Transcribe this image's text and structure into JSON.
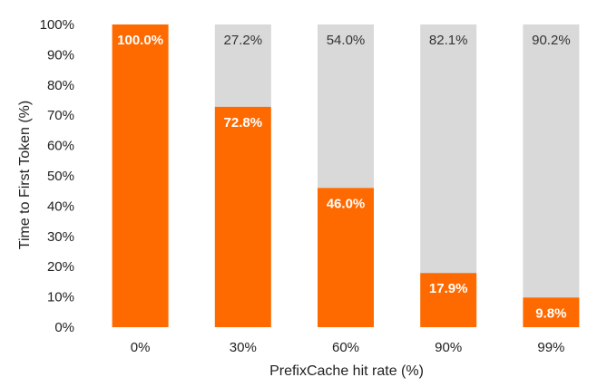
{
  "chart_data": {
    "type": "bar",
    "stacked": true,
    "categories": [
      "0%",
      "30%",
      "60%",
      "90%",
      "99%"
    ],
    "series": [
      {
        "values": [
          100.0,
          72.8,
          46.0,
          17.9,
          9.8
        ],
        "labels": [
          "100.0%",
          "72.8%",
          "46.0%",
          "17.9%",
          "9.8%"
        ],
        "color": "#FF6A00"
      },
      {
        "values": [
          0.0,
          27.2,
          54.0,
          82.1,
          90.2
        ],
        "labels": [
          "",
          "27.2%",
          "54.0%",
          "82.1%",
          "90.2%"
        ],
        "color": "#D9D9D9"
      }
    ],
    "xlabel": "PrefixCache hit rate (%)",
    "ylabel": "Time to First Token (%)",
    "ylim": [
      0,
      100
    ],
    "yticks": [
      "0%",
      "10%",
      "20%",
      "30%",
      "40%",
      "50%",
      "60%",
      "70%",
      "80%",
      "90%",
      "100%"
    ],
    "grid": false,
    "legend": "none"
  }
}
